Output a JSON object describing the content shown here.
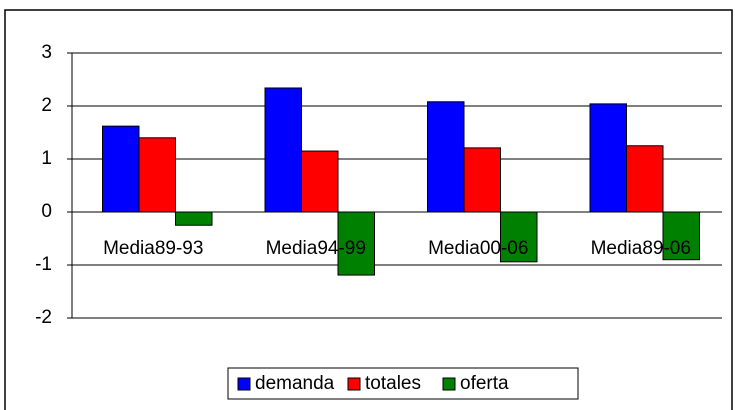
{
  "chart_data": {
    "type": "bar",
    "categories": [
      "Media89-93",
      "Media94-99",
      "Media00-06",
      "Media89-06"
    ],
    "series": [
      {
        "name": "demanda",
        "color": "#0000ff",
        "values": [
          1.62,
          2.34,
          2.08,
          2.04
        ]
      },
      {
        "name": "totales",
        "color": "#ff0000",
        "values": [
          1.4,
          1.15,
          1.21,
          1.25
        ]
      },
      {
        "name": "oferta",
        "color": "#008000",
        "values": [
          -0.25,
          -1.19,
          -0.94,
          -0.9
        ]
      }
    ],
    "ylim": [
      -2,
      3
    ],
    "yticks": [
      -2,
      -1,
      0,
      1,
      2,
      3
    ],
    "grid": true,
    "legend": "bottom"
  }
}
